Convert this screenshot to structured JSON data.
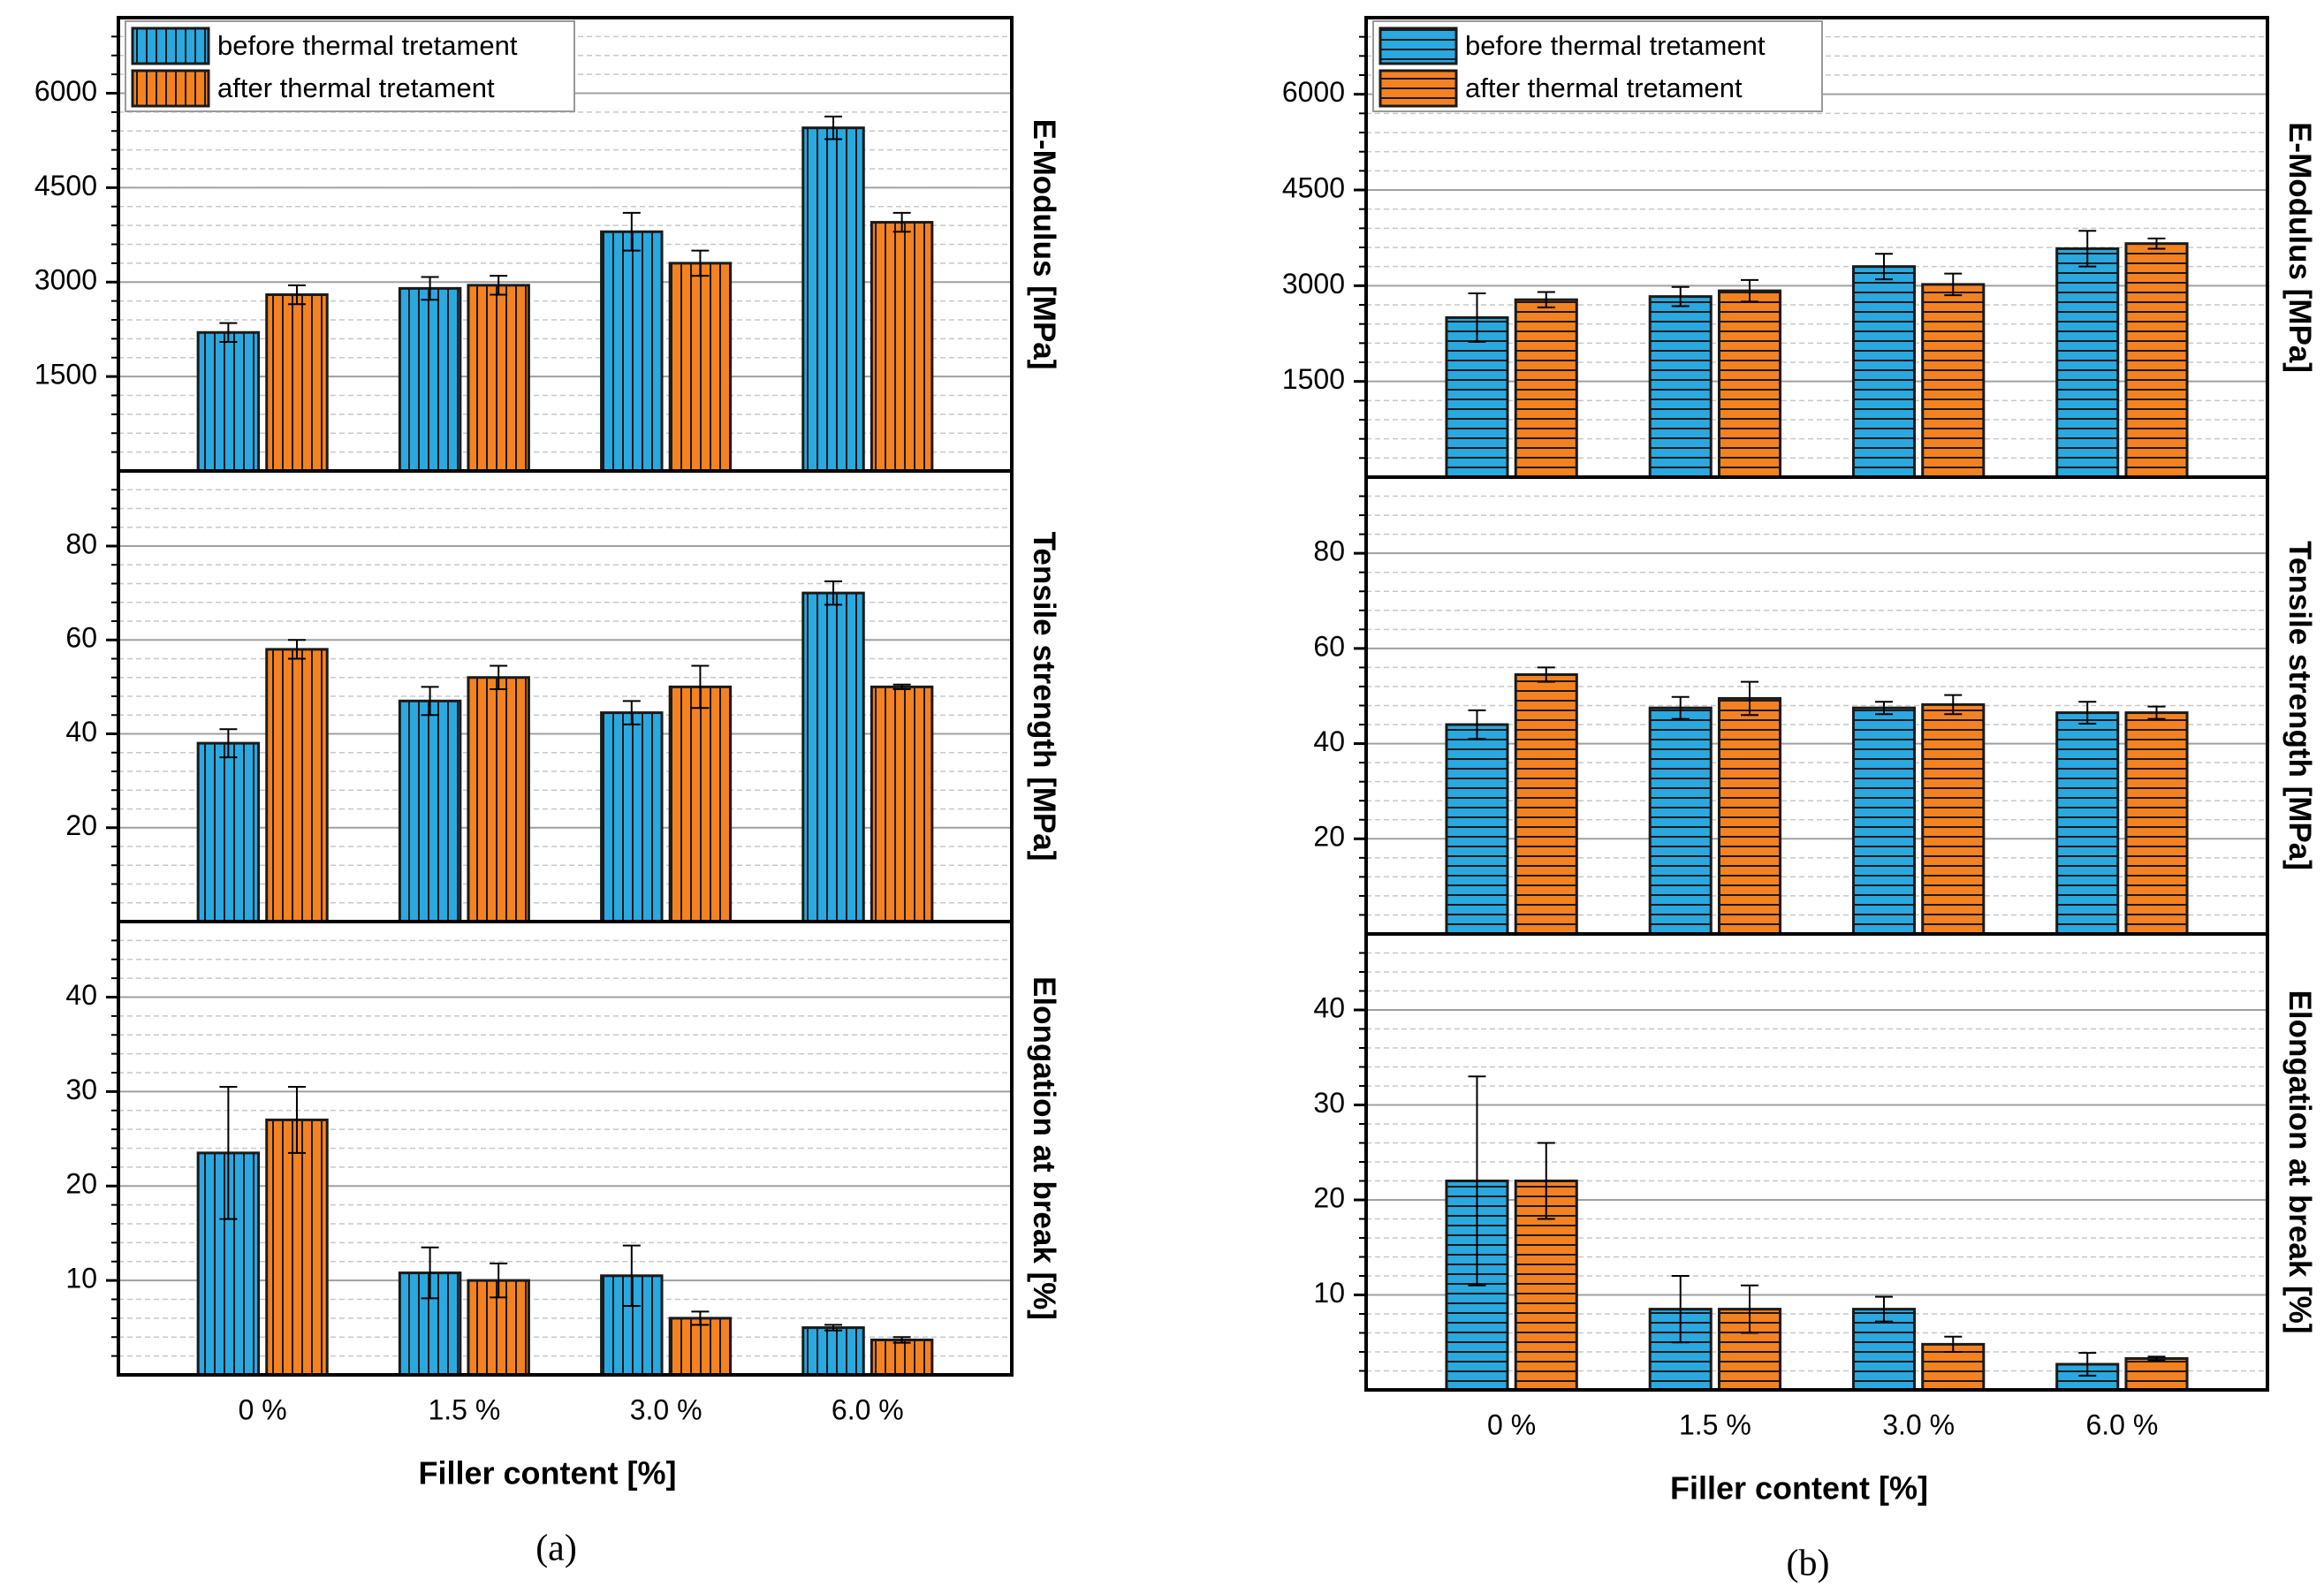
{
  "chart_data": [
    {
      "type": "bar",
      "label": "(a)",
      "xlabel": "Filler content [%]",
      "categories": [
        "0 %",
        "1.5 %",
        "3.0 %",
        "6.0 %"
      ],
      "hatch": "vertical",
      "grid": true,
      "series": [
        {
          "name": "before thermal tretament",
          "color": "#29a9e0"
        },
        {
          "name": "after thermal tretament",
          "color": "#f58220"
        }
      ],
      "panels": [
        {
          "ylabel": "E-Modulus [MPa]",
          "ylim": [
            0,
            7200
          ],
          "yticks": [
            1500,
            3000,
            4500,
            6000
          ],
          "series": [
            {
              "values": [
                2200,
                2900,
                3800,
                5450
              ],
              "errors": [
                150,
                180,
                300,
                180
              ]
            },
            {
              "values": [
                2800,
                2950,
                3300,
                3950
              ],
              "errors": [
                150,
                150,
                200,
                150
              ]
            }
          ]
        },
        {
          "ylabel": "Tensile strength [MPa]",
          "ylim": [
            0,
            96
          ],
          "yticks": [
            20,
            40,
            60,
            80
          ],
          "series": [
            {
              "values": [
                38,
                47,
                44.5,
                70
              ],
              "errors": [
                3,
                3,
                2.5,
                2.5
              ]
            },
            {
              "values": [
                58,
                52,
                50,
                50
              ],
              "errors": [
                2,
                2.5,
                4.5,
                0.5
              ]
            }
          ]
        },
        {
          "ylabel": "Elongation at break [%]",
          "ylim": [
            0,
            48
          ],
          "yticks": [
            10,
            20,
            30,
            40
          ],
          "series": [
            {
              "values": [
                23.5,
                10.8,
                10.5,
                5
              ],
              "errors": [
                7,
                2.7,
                3.2,
                0.3
              ]
            },
            {
              "values": [
                27,
                10,
                6,
                3.7
              ],
              "errors": [
                3.5,
                1.8,
                0.7,
                0.3
              ]
            }
          ]
        }
      ]
    },
    {
      "type": "bar",
      "label": "(b)",
      "xlabel": "Filler content [%]",
      "categories": [
        "0 %",
        "1.5 %",
        "3.0 %",
        "6.0 %"
      ],
      "hatch": "horizontal",
      "grid": true,
      "series": [
        {
          "name": "before thermal tretament",
          "color": "#29a9e0"
        },
        {
          "name": "after thermal tretament",
          "color": "#f58220"
        }
      ],
      "panels": [
        {
          "ylabel": "E-Modulus [MPa]",
          "ylim": [
            0,
            7200
          ],
          "yticks": [
            1500,
            3000,
            4500,
            6000
          ],
          "series": [
            {
              "values": [
                2500,
                2830,
                3300,
                3580
              ],
              "errors": [
                380,
                150,
                200,
                280
              ]
            },
            {
              "values": [
                2780,
                2920,
                3020,
                3660
              ],
              "errors": [
                120,
                170,
                170,
                80
              ]
            }
          ]
        },
        {
          "ylabel": "Tensile strength [MPa]",
          "ylim": [
            0,
            96
          ],
          "yticks": [
            20,
            40,
            60,
            80
          ],
          "series": [
            {
              "values": [
                44,
                47.5,
                47.5,
                46.5
              ],
              "errors": [
                3,
                2.3,
                1.3,
                2.3
              ]
            },
            {
              "values": [
                54.5,
                49.5,
                48.2,
                46.5
              ],
              "errors": [
                1.5,
                3.5,
                2,
                1.3
              ]
            }
          ]
        },
        {
          "ylabel": "Elongation at break [%]",
          "ylim": [
            0,
            48
          ],
          "yticks": [
            10,
            20,
            30,
            40
          ],
          "series": [
            {
              "values": [
                22,
                8.5,
                8.5,
                2.7
              ],
              "errors": [
                11,
                3.5,
                1.3,
                1.2
              ]
            },
            {
              "values": [
                22,
                8.5,
                4.8,
                3.3
              ],
              "errors": [
                4,
                2.5,
                0.8,
                0.2
              ]
            }
          ]
        }
      ]
    }
  ]
}
